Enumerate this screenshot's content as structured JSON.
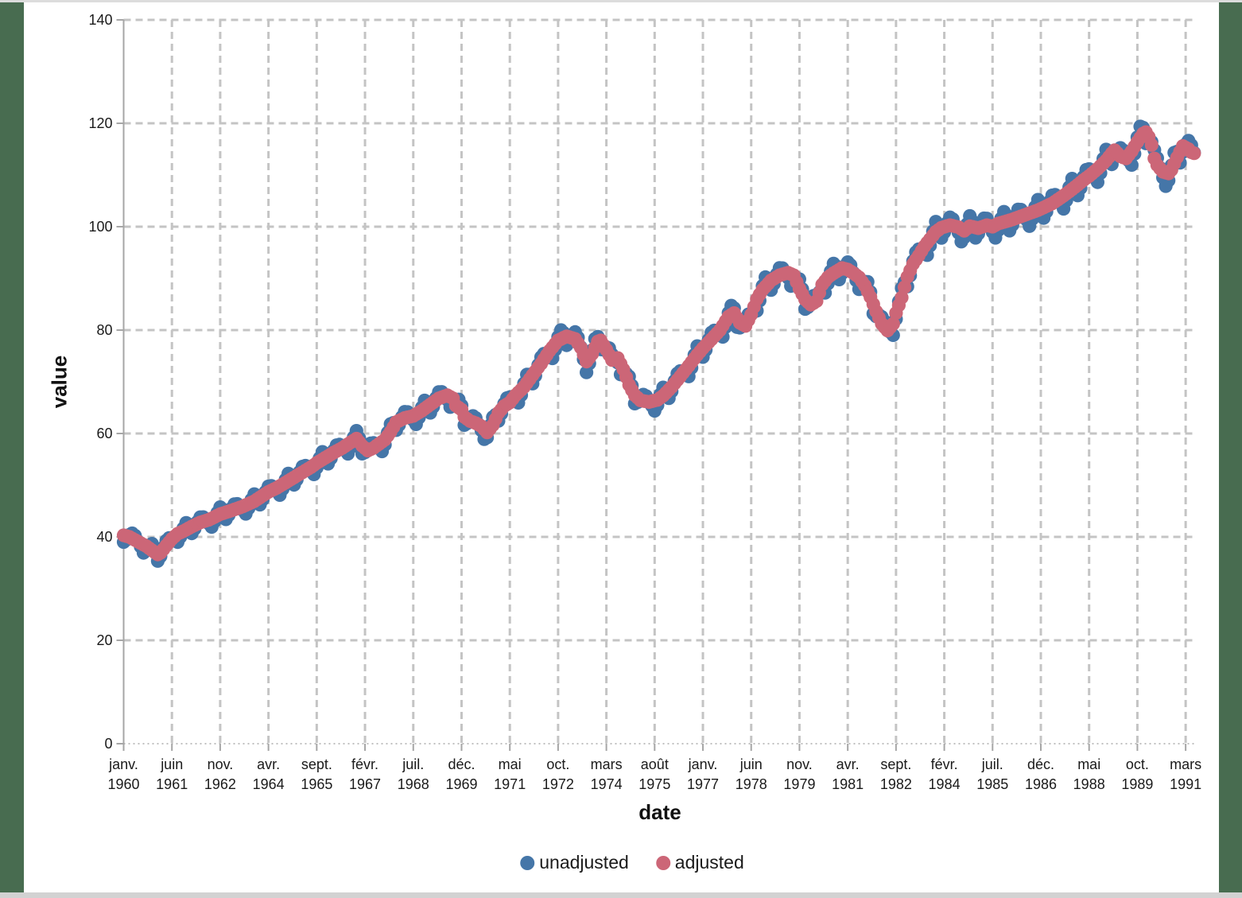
{
  "window": {
    "edge_background_color": "#486c50",
    "top_strip_color": "#dcdcdc",
    "bottom_strip_color": "#d2d2d2",
    "canvas_color": "#ffffff"
  },
  "chart_data": {
    "type": "scatter",
    "title": "",
    "xlabel": "date",
    "ylabel": "value",
    "x_axis": {
      "frequency": "monthly",
      "start": "janv. 1960",
      "end": "juin 1991",
      "tick_interval_months": 17,
      "ticks": [
        {
          "m": "janv.",
          "y": "1960"
        },
        {
          "m": "juin",
          "y": "1961"
        },
        {
          "m": "nov.",
          "y": "1962"
        },
        {
          "m": "avr.",
          "y": "1964"
        },
        {
          "m": "sept.",
          "y": "1965"
        },
        {
          "m": "févr.",
          "y": "1967"
        },
        {
          "m": "juil.",
          "y": "1968"
        },
        {
          "m": "déc.",
          "y": "1969"
        },
        {
          "m": "mai",
          "y": "1971"
        },
        {
          "m": "oct.",
          "y": "1972"
        },
        {
          "m": "mars",
          "y": "1974"
        },
        {
          "m": "août",
          "y": "1975"
        },
        {
          "m": "janv.",
          "y": "1977"
        },
        {
          "m": "juin",
          "y": "1978"
        },
        {
          "m": "nov.",
          "y": "1979"
        },
        {
          "m": "avr.",
          "y": "1981"
        },
        {
          "m": "sept.",
          "y": "1982"
        },
        {
          "m": "févr.",
          "y": "1984"
        },
        {
          "m": "juil.",
          "y": "1985"
        },
        {
          "m": "déc.",
          "y": "1986"
        },
        {
          "m": "mai",
          "y": "1988"
        },
        {
          "m": "oct.",
          "y": "1989"
        },
        {
          "m": "mars",
          "y": "1991"
        }
      ]
    },
    "y_axis": {
      "min": 0,
      "max": 140,
      "ticks": [
        0,
        20,
        40,
        60,
        80,
        100,
        120,
        140
      ]
    },
    "grid": {
      "horizontal": true,
      "vertical": true,
      "style": "dashed",
      "color": "#c4c4c4"
    },
    "axis_line_color": "#a6a6a6",
    "tick_label_color": "#1a1a1a",
    "months_total": 378,
    "legend": {
      "position": "bottom-center",
      "entries": [
        {
          "label": "unadjusted",
          "color": "#4576a8"
        },
        {
          "label": "adjusted",
          "color": "#cc6677"
        }
      ]
    },
    "series": [
      {
        "name": "unadjusted",
        "color": "#4576a8",
        "derivation": "adjusted value plus seasonal offset (offset_by_calendar_month scaled by 0.5+value/150)",
        "seasonal_offset_by_month": [
          -1.7,
          -0.9,
          0.5,
          1.3,
          1.1,
          0.1,
          -0.9,
          -2.1,
          -1.1,
          0.7,
          1.7,
          0.9
        ]
      },
      {
        "name": "adjusted",
        "color": "#cc6677",
        "anchors_month_value": [
          [
            0,
            40.3
          ],
          [
            2,
            40.0
          ],
          [
            4,
            39.4
          ],
          [
            6,
            38.8
          ],
          [
            8,
            38.2
          ],
          [
            10,
            37.4
          ],
          [
            12,
            36.6
          ],
          [
            13,
            36.9
          ],
          [
            15,
            38.3
          ],
          [
            17,
            39.6
          ],
          [
            19,
            40.6
          ],
          [
            21,
            41.1
          ],
          [
            24,
            42.0
          ],
          [
            27,
            42.8
          ],
          [
            30,
            43.3
          ],
          [
            34,
            44.4
          ],
          [
            38,
            45.1
          ],
          [
            42,
            45.9
          ],
          [
            46,
            46.9
          ],
          [
            51,
            48.7
          ],
          [
            54,
            49.5
          ],
          [
            57,
            50.5
          ],
          [
            60,
            51.5
          ],
          [
            63,
            52.5
          ],
          [
            66,
            53.5
          ],
          [
            68,
            54.3
          ],
          [
            71,
            55.3
          ],
          [
            74,
            56.3
          ],
          [
            77,
            57.2
          ],
          [
            80,
            58.3
          ],
          [
            82,
            59.0
          ],
          [
            84,
            57.6
          ],
          [
            86,
            56.7
          ],
          [
            88,
            57.2
          ],
          [
            90,
            58.0
          ],
          [
            92,
            58.8
          ],
          [
            94,
            60.3
          ],
          [
            96,
            62.2
          ],
          [
            99,
            63.0
          ],
          [
            102,
            63.4
          ],
          [
            105,
            64.4
          ],
          [
            108,
            65.6
          ],
          [
            111,
            66.8
          ],
          [
            114,
            67.4
          ],
          [
            116,
            66.8
          ],
          [
            117,
            65.4
          ],
          [
            119,
            64.6
          ],
          [
            120,
            63.2
          ],
          [
            122,
            62.4
          ],
          [
            124,
            62.0
          ],
          [
            126,
            61.4
          ],
          [
            128,
            60.2
          ],
          [
            130,
            61.6
          ],
          [
            132,
            64.0
          ],
          [
            134,
            65.3
          ],
          [
            136,
            66.0
          ],
          [
            138,
            67.4
          ],
          [
            141,
            69.0
          ],
          [
            144,
            71.3
          ],
          [
            147,
            73.5
          ],
          [
            150,
            76.0
          ],
          [
            153,
            78.0
          ],
          [
            156,
            78.8
          ],
          [
            159,
            78.3
          ],
          [
            161,
            76.6
          ],
          [
            163,
            73.9
          ],
          [
            165,
            75.4
          ],
          [
            167,
            77.8
          ],
          [
            168,
            78.0
          ],
          [
            170,
            76.2
          ],
          [
            172,
            74.2
          ],
          [
            174,
            74.6
          ],
          [
            176,
            72.4
          ],
          [
            178,
            69.4
          ],
          [
            180,
            67.4
          ],
          [
            182,
            66.4
          ],
          [
            185,
            66.1
          ],
          [
            188,
            66.5
          ],
          [
            190,
            67.3
          ],
          [
            193,
            69.0
          ],
          [
            196,
            71.0
          ],
          [
            199,
            73.1
          ],
          [
            202,
            75.2
          ],
          [
            204,
            76.5
          ],
          [
            207,
            78.2
          ],
          [
            210,
            80.0
          ],
          [
            213,
            82.6
          ],
          [
            215,
            83.3
          ],
          [
            217,
            81.4
          ],
          [
            219,
            80.8
          ],
          [
            221,
            83.0
          ],
          [
            223,
            86.0
          ],
          [
            225,
            87.8
          ],
          [
            228,
            89.6
          ],
          [
            231,
            90.6
          ],
          [
            234,
            91.1
          ],
          [
            236,
            90.6
          ],
          [
            238,
            88.0
          ],
          [
            240,
            85.9
          ],
          [
            242,
            84.9
          ],
          [
            244,
            85.6
          ],
          [
            246,
            88.8
          ],
          [
            248,
            90.2
          ],
          [
            250,
            91.0
          ],
          [
            253,
            92.0
          ],
          [
            255,
            91.7
          ],
          [
            257,
            91.0
          ],
          [
            259,
            90.2
          ],
          [
            261,
            88.6
          ],
          [
            263,
            86.4
          ],
          [
            265,
            83.6
          ],
          [
            267,
            81.2
          ],
          [
            269,
            79.9
          ],
          [
            271,
            81.2
          ],
          [
            272,
            83.3
          ],
          [
            274,
            86.3
          ],
          [
            276,
            90.3
          ],
          [
            278,
            92.8
          ],
          [
            280,
            94.4
          ],
          [
            282,
            96.2
          ],
          [
            284,
            97.6
          ],
          [
            286,
            99.0
          ],
          [
            288,
            99.8
          ],
          [
            291,
            100.3
          ],
          [
            294,
            99.9
          ],
          [
            296,
            99.2
          ],
          [
            298,
            100.1
          ],
          [
            301,
            99.7
          ],
          [
            304,
            100.3
          ],
          [
            306,
            100.0
          ],
          [
            308,
            100.6
          ],
          [
            310,
            100.9
          ],
          [
            313,
            101.4
          ],
          [
            316,
            102.0
          ],
          [
            319,
            102.6
          ],
          [
            322,
            103.2
          ],
          [
            324,
            103.7
          ],
          [
            327,
            104.5
          ],
          [
            330,
            105.6
          ],
          [
            333,
            106.8
          ],
          [
            336,
            108.1
          ],
          [
            338,
            109.0
          ],
          [
            340,
            109.8
          ],
          [
            343,
            111.2
          ],
          [
            346,
            112.8
          ],
          [
            348,
            114.2
          ],
          [
            349,
            114.8
          ],
          [
            351,
            113.6
          ],
          [
            353,
            113.2
          ],
          [
            355,
            114.6
          ],
          [
            357,
            116.4
          ],
          [
            359,
            118.0
          ],
          [
            360,
            118.3
          ],
          [
            361,
            117.4
          ],
          [
            362,
            115.8
          ],
          [
            363,
            113.2
          ],
          [
            364,
            111.9
          ],
          [
            366,
            110.6
          ],
          [
            368,
            110.3
          ],
          [
            369,
            111.0
          ],
          [
            371,
            113.4
          ],
          [
            373,
            115.6
          ],
          [
            375,
            115.0
          ],
          [
            376,
            114.4
          ],
          [
            377,
            114.2
          ]
        ]
      }
    ]
  }
}
